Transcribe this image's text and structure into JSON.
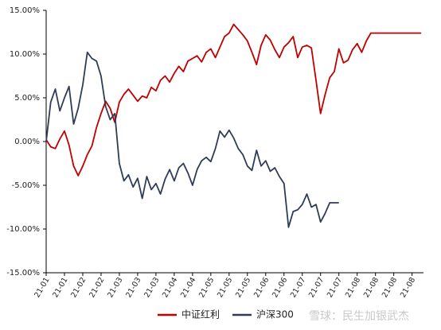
{
  "chart_data": {
    "type": "line",
    "title": "",
    "xlabel": "",
    "ylabel": "",
    "ylim": [
      -15,
      15
    ],
    "yticks": [
      15,
      10,
      5,
      0,
      -5,
      -10,
      -15
    ],
    "ytick_labels": [
      "15.00%",
      "10.00%",
      "5.00%",
      "0.00%",
      "-5.00%",
      "-10.00%",
      "-15.00%"
    ],
    "xlim": [
      0,
      165
    ],
    "xticks": [
      0,
      8,
      16,
      24,
      32,
      40,
      48,
      56,
      64,
      72,
      80,
      88,
      96,
      104,
      112,
      120,
      128,
      136,
      144,
      152,
      160
    ],
    "xtick_labels": [
      "21-01",
      "21-01",
      "21-02",
      "21-02",
      "21-03",
      "21-03",
      "21-03",
      "21-04",
      "21-04",
      "21-05",
      "21-05",
      "21-05",
      "21-06",
      "21-06",
      "21-07",
      "21-07",
      "21-07",
      "21-08",
      "21-08",
      "21-08",
      "21-08"
    ],
    "grid": false,
    "legend_position": "bottom-center",
    "series": [
      {
        "name": "中证红利",
        "color": "#c00000",
        "x": [
          0,
          2,
          4,
          6,
          8,
          10,
          12,
          14,
          16,
          18,
          20,
          22,
          24,
          26,
          28,
          30,
          32,
          34,
          36,
          38,
          40,
          42,
          44,
          46,
          48,
          50,
          52,
          54,
          56,
          58,
          60,
          62,
          64,
          66,
          68,
          70,
          72,
          74,
          76,
          78,
          80,
          82,
          84,
          86,
          88,
          90,
          92,
          94,
          96,
          98,
          100,
          102,
          104,
          106,
          108,
          110,
          112,
          114,
          116,
          118,
          120,
          122,
          124,
          126,
          128,
          130,
          132,
          134,
          136,
          138,
          140,
          142,
          144,
          146,
          148,
          150,
          152,
          154,
          156,
          158,
          160,
          162,
          164
        ],
        "y": [
          0.2,
          -0.6,
          -0.8,
          0.3,
          1.2,
          -0.4,
          -2.8,
          -3.9,
          -2.8,
          -1.5,
          -0.5,
          1.6,
          3.2,
          4.6,
          3.8,
          2.2,
          4.5,
          5.4,
          6.0,
          5.3,
          4.6,
          5.2,
          5.0,
          6.2,
          5.8,
          7.0,
          7.5,
          6.8,
          7.8,
          8.6,
          8.0,
          9.2,
          9.5,
          9.8,
          9.1,
          10.2,
          10.6,
          9.6,
          10.8,
          12.0,
          12.4,
          13.4,
          12.8,
          12.2,
          11.5,
          10.2,
          8.8,
          11.0,
          12.2,
          11.6,
          10.5,
          9.6,
          10.8,
          11.3,
          12.0,
          9.6,
          10.8,
          11.0,
          10.7,
          7.0,
          3.2,
          5.4,
          7.3,
          8.0,
          10.6,
          9.0,
          9.3,
          10.5,
          11.2,
          10.2,
          11.5,
          12.4,
          12.4,
          12.4,
          12.4,
          12.4,
          12.4,
          12.4,
          12.4,
          12.4,
          12.4,
          12.4,
          12.4
        ]
      },
      {
        "name": "沪深300",
        "color": "#2f3c57",
        "x": [
          0,
          2,
          4,
          6,
          8,
          10,
          12,
          14,
          16,
          18,
          20,
          22,
          24,
          26,
          28,
          30,
          32,
          34,
          36,
          38,
          40,
          42,
          44,
          46,
          48,
          50,
          52,
          54,
          56,
          58,
          60,
          62,
          64,
          66,
          68,
          70,
          72,
          74,
          76,
          78,
          80,
          82,
          84,
          86,
          88,
          90,
          92,
          94,
          96,
          98,
          100,
          102,
          104,
          106,
          108,
          110,
          112,
          114,
          116,
          118,
          120,
          122,
          124,
          126,
          128
        ],
        "y": [
          0.0,
          4.5,
          6.0,
          3.5,
          5.0,
          6.3,
          2.0,
          3.8,
          6.5,
          10.2,
          9.5,
          9.2,
          7.5,
          4.0,
          2.5,
          3.2,
          -2.5,
          -4.5,
          -3.8,
          -5.2,
          -4.2,
          -6.5,
          -4.0,
          -5.5,
          -4.8,
          -6.0,
          -4.3,
          -3.2,
          -4.5,
          -3.0,
          -2.5,
          -3.6,
          -5.0,
          -3.2,
          -2.2,
          -1.8,
          -2.3,
          -0.8,
          1.2,
          0.5,
          1.3,
          0.4,
          -0.8,
          -1.5,
          -2.8,
          -3.3,
          -1.0,
          -2.8,
          -2.2,
          -3.4,
          -3.0,
          -4.0,
          -4.8,
          -9.8,
          -8.0,
          -7.8,
          -7.2,
          -6.0,
          -7.5,
          -7.2,
          -9.2,
          -8.2,
          -7.0,
          -7.0,
          -7.0
        ]
      }
    ]
  },
  "legend": {
    "items": [
      {
        "label": "中证红利",
        "color": "#c00000"
      },
      {
        "label": "沪深300",
        "color": "#2f3c57"
      }
    ]
  },
  "watermark": {
    "text": "雪球：民生加银武杰"
  }
}
